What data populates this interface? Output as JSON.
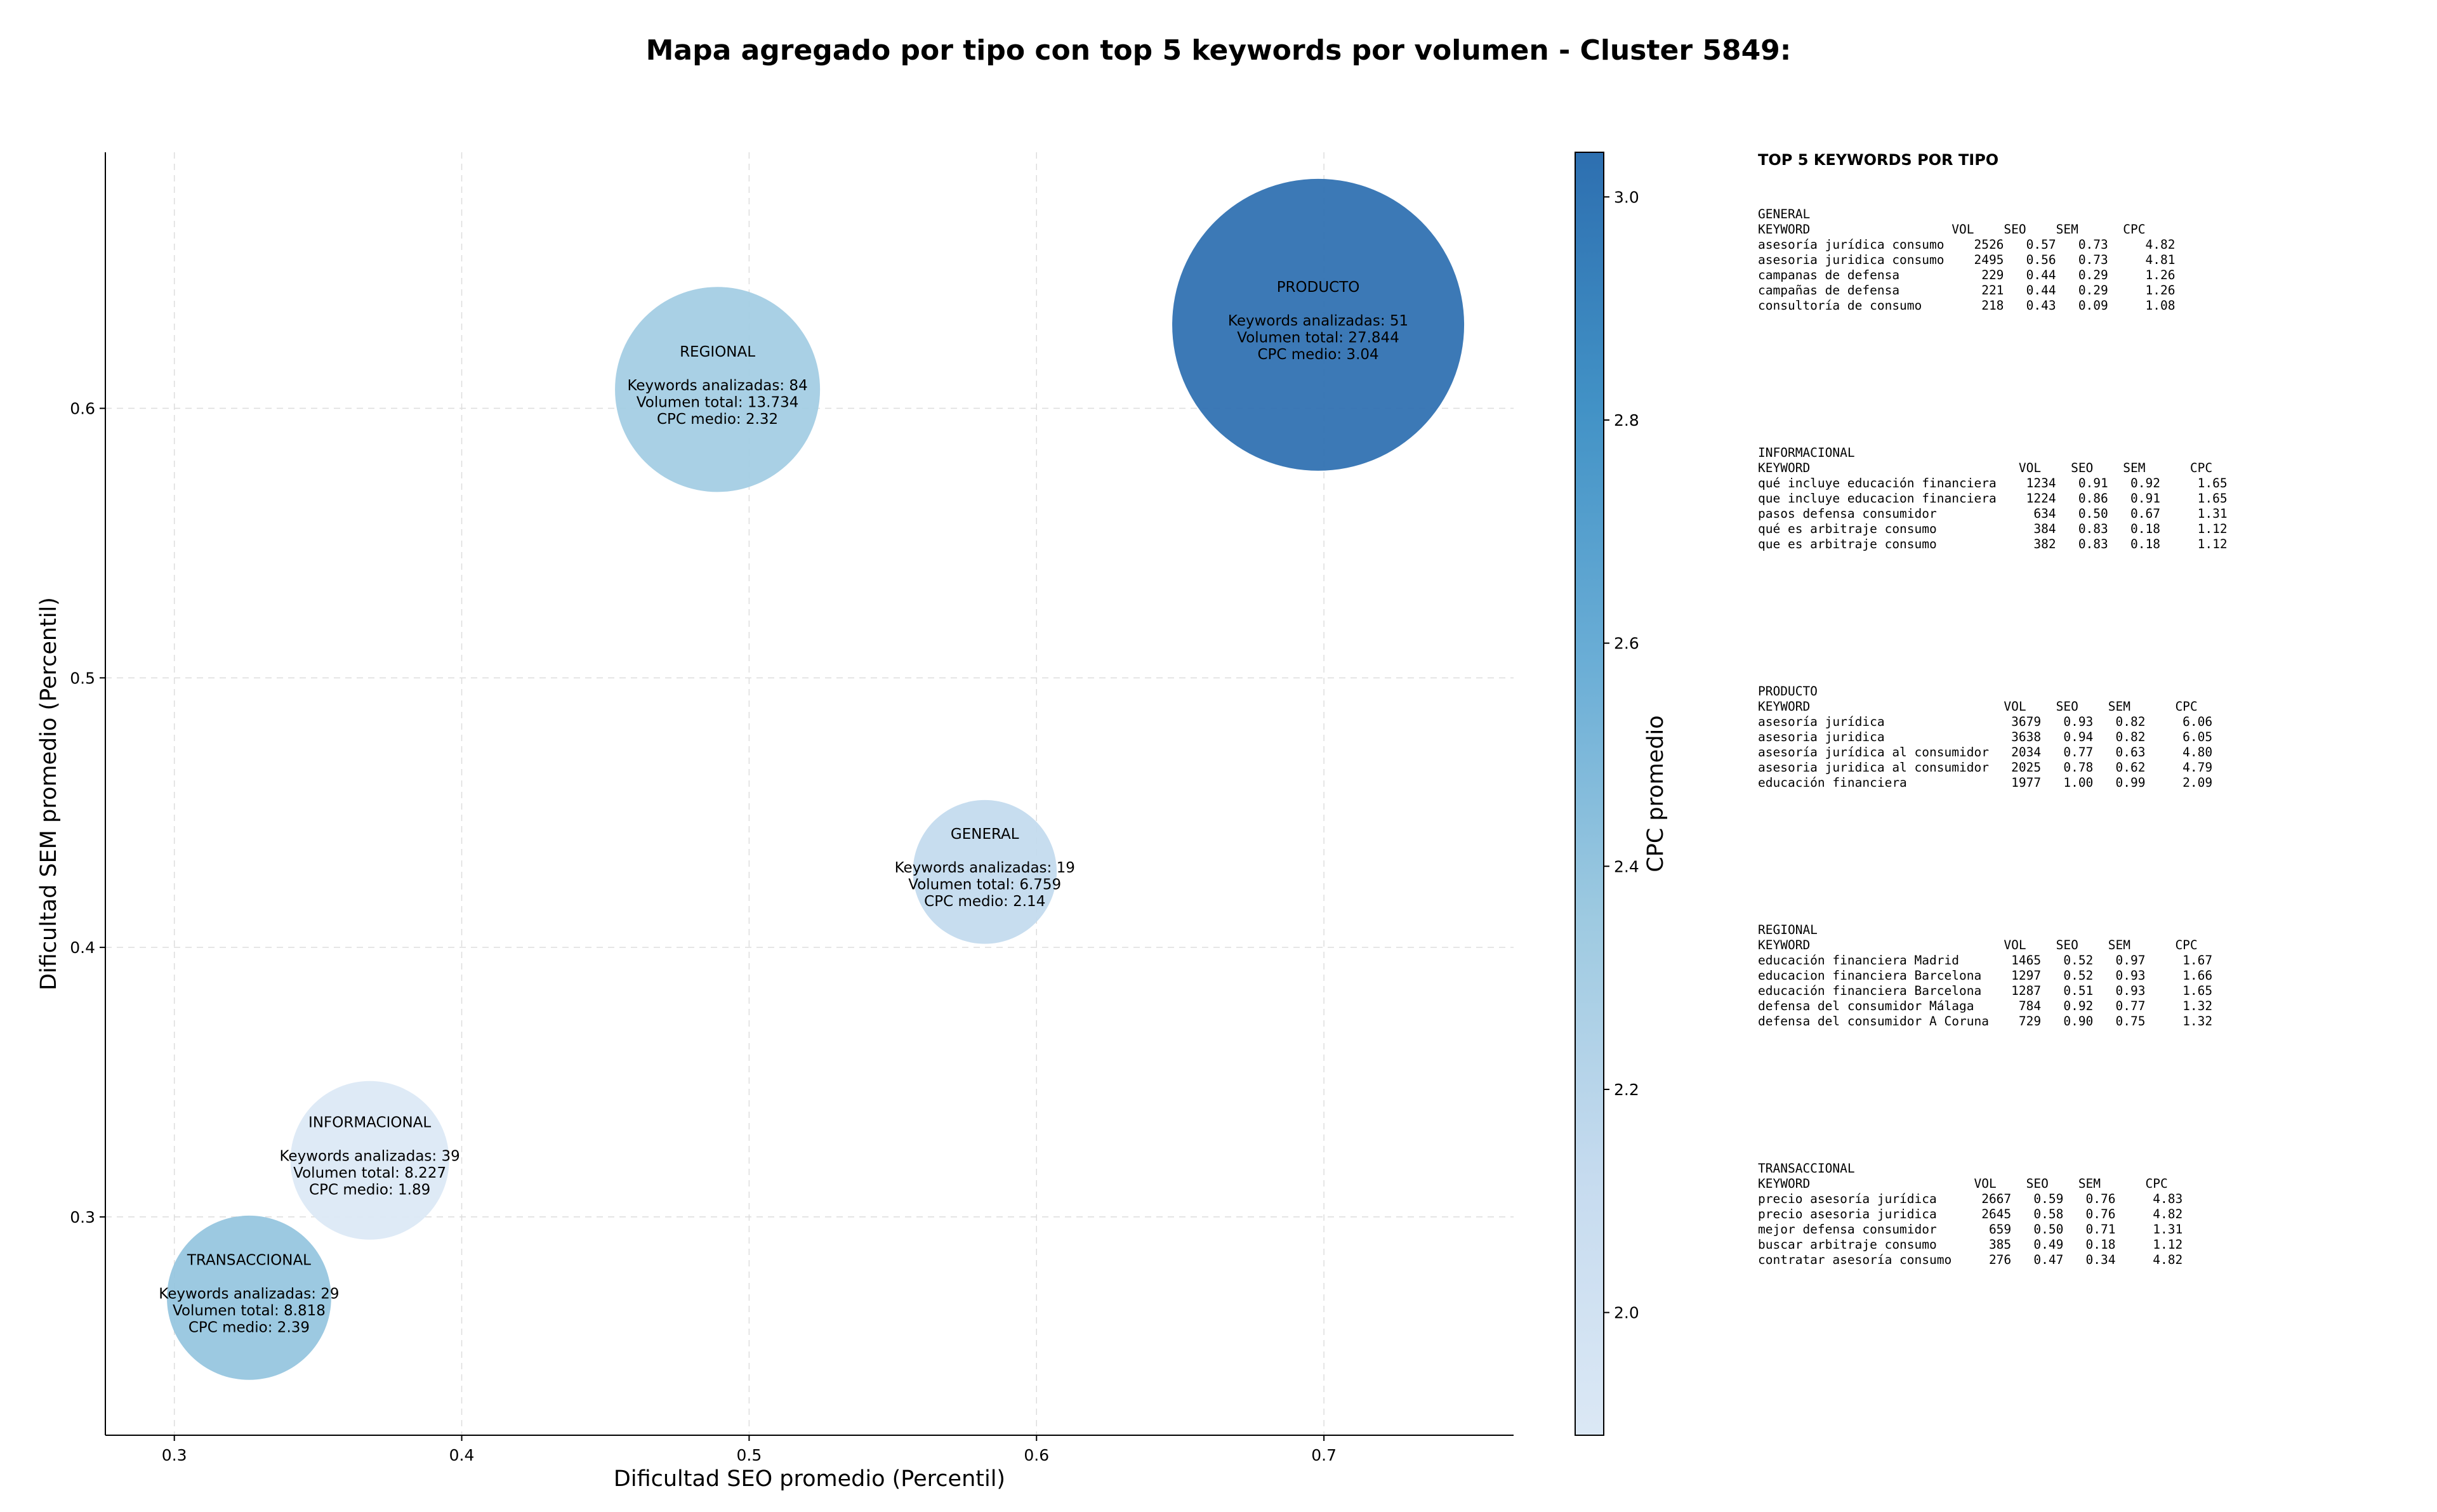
{
  "title": "Mapa agregado por tipo con top 5 keywords por volumen - Cluster 5849:",
  "chart_data": {
    "type": "scatter",
    "xlabel": "Dificultad SEO promedio (Percentil)",
    "ylabel": "Dificultad SEM promedio (Percentil)",
    "xlim": [
      0.276,
      0.766
    ],
    "ylim": [
      0.219,
      0.695
    ],
    "xticks": [
      "0.3",
      "0.4",
      "0.5",
      "0.6",
      "0.7"
    ],
    "yticks": [
      "0.3",
      "0.4",
      "0.5",
      "0.6"
    ],
    "grid": true,
    "colorbar": {
      "label": "CPC promedio",
      "min": 1.89,
      "max": 3.04,
      "ticks": [
        "2.0",
        "2.2",
        "2.4",
        "2.6",
        "2.8",
        "3.0"
      ],
      "colormap": [
        "#dbe8f5",
        "#c6dbef",
        "#9ecae1",
        "#6baed6",
        "#4292c6",
        "#2d6fb0"
      ]
    },
    "points": [
      {
        "label": "INFORMACIONAL",
        "x": 0.368,
        "y": 0.321,
        "keywords": 39,
        "volume": 8227,
        "cpc": 1.89,
        "line1": "Keywords analizadas: 39",
        "line2": "Volumen total: 8.227",
        "line3": "CPC medio: 1.89"
      },
      {
        "label": "TRANSACCIONAL",
        "x": 0.326,
        "y": 0.27,
        "keywords": 29,
        "volume": 8818,
        "cpc": 2.39,
        "line1": "Keywords analizadas: 29",
        "line2": "Volumen total: 8.818",
        "line3": "CPC medio: 2.39"
      },
      {
        "label": "GENERAL",
        "x": 0.582,
        "y": 0.428,
        "keywords": 19,
        "volume": 6759,
        "cpc": 2.14,
        "line1": "Keywords analizadas: 19",
        "line2": "Volumen total: 6.759",
        "line3": "CPC medio: 2.14"
      },
      {
        "label": "REGIONAL",
        "x": 0.489,
        "y": 0.607,
        "keywords": 84,
        "volume": 13734,
        "cpc": 2.32,
        "line1": "Keywords analizadas: 84",
        "line2": "Volumen total: 13.734",
        "line3": "CPC medio: 2.32"
      },
      {
        "label": "PRODUCTO",
        "x": 0.698,
        "y": 0.631,
        "keywords": 51,
        "volume": 27844,
        "cpc": 3.04,
        "line1": "Keywords analizadas: 51",
        "line2": "Volumen total: 27.844",
        "line3": "CPC medio: 3.04"
      }
    ]
  },
  "top5": {
    "heading": "TOP 5 KEYWORDS POR TIPO",
    "blocks": [
      "GENERAL\nKEYWORD                   VOL    SEO    SEM      CPC\nasesoría jurídica consumo    2526   0.57   0.73     4.82\nasesoria juridica consumo    2495   0.56   0.73     4.81\ncampanas de defensa           229   0.44   0.29     1.26\ncampañas de defensa           221   0.44   0.29     1.26\nconsultoría de consumo        218   0.43   0.09     1.08",
      "INFORMACIONAL\nKEYWORD                            VOL    SEO    SEM      CPC\nqué incluye educación financiera    1234   0.91   0.92     1.65\nque incluye educacion financiera    1224   0.86   0.91     1.65\npasos defensa consumidor             634   0.50   0.67     1.31\nqué es arbitraje consumo             384   0.83   0.18     1.12\nque es arbitraje consumo             382   0.83   0.18     1.12",
      "PRODUCTO\nKEYWORD                          VOL    SEO    SEM      CPC\nasesoría jurídica                 3679   0.93   0.82     6.06\nasesoria juridica                 3638   0.94   0.82     6.05\nasesoría jurídica al consumidor   2034   0.77   0.63     4.80\nasesoria juridica al consumidor   2025   0.78   0.62     4.79\neducación financiera              1977   1.00   0.99     2.09",
      "REGIONAL\nKEYWORD                          VOL    SEO    SEM      CPC\neducación financiera Madrid       1465   0.52   0.97     1.67\neducacion financiera Barcelona    1297   0.52   0.93     1.66\neducación financiera Barcelona    1287   0.51   0.93     1.65\ndefensa del consumidor Málaga      784   0.92   0.77     1.32\ndefensa del consumidor A Coruna    729   0.90   0.75     1.32",
      "TRANSACCIONAL\nKEYWORD                      VOL    SEO    SEM      CPC\nprecio asesoría jurídica      2667   0.59   0.76     4.83\nprecio asesoria juridica      2645   0.58   0.76     4.82\nmejor defensa consumidor       659   0.50   0.71     1.31\nbuscar arbitraje consumo       385   0.49   0.18     1.12\ncontratar asesoría consumo     276   0.47   0.34     4.82"
    ]
  }
}
